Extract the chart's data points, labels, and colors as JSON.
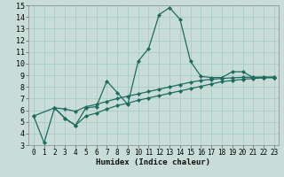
{
  "xlabel": "Humidex (Indice chaleur)",
  "bg_color": "#c8ddd8",
  "grid_color": "#aaccc6",
  "line_color": "#1e6b5e",
  "xlim_min": -0.5,
  "xlim_max": 23.4,
  "ylim_min": 3,
  "ylim_max": 15,
  "xticks": [
    0,
    1,
    2,
    3,
    4,
    5,
    6,
    7,
    8,
    9,
    10,
    11,
    12,
    13,
    14,
    15,
    16,
    17,
    18,
    19,
    20,
    21,
    22,
    23
  ],
  "yticks": [
    3,
    4,
    5,
    6,
    7,
    8,
    9,
    10,
    11,
    12,
    13,
    14,
    15
  ],
  "spiky_x": [
    0,
    1,
    2,
    3,
    4,
    5,
    6,
    7,
    8,
    9,
    10,
    11,
    12,
    13,
    14,
    15,
    16,
    17,
    18,
    19,
    20,
    21,
    22,
    23
  ],
  "spiky_y": [
    5.5,
    3.2,
    6.2,
    5.3,
    4.7,
    6.2,
    6.3,
    8.5,
    7.5,
    6.5,
    10.2,
    11.3,
    14.2,
    14.8,
    13.8,
    10.2,
    8.9,
    8.8,
    8.8,
    9.3,
    9.3,
    8.8,
    8.8,
    8.8
  ],
  "upper_x": [
    0,
    2,
    3,
    4,
    5,
    6,
    7,
    8,
    9,
    10,
    11,
    12,
    13,
    14,
    15,
    16,
    17,
    18,
    19,
    20,
    21,
    22,
    23
  ],
  "upper_y": [
    5.5,
    6.2,
    6.1,
    5.9,
    6.3,
    6.5,
    6.75,
    7.0,
    7.2,
    7.4,
    7.6,
    7.8,
    8.0,
    8.2,
    8.4,
    8.55,
    8.65,
    8.72,
    8.78,
    8.82,
    8.83,
    8.85,
    8.85
  ],
  "lower_x": [
    2,
    3,
    4,
    5,
    6,
    7,
    8,
    9,
    10,
    11,
    12,
    13,
    14,
    15,
    16,
    17,
    18,
    19,
    20,
    21,
    22,
    23
  ],
  "lower_y": [
    6.2,
    5.3,
    4.7,
    5.5,
    5.75,
    6.1,
    6.4,
    6.6,
    6.85,
    7.05,
    7.25,
    7.45,
    7.65,
    7.85,
    8.05,
    8.25,
    8.45,
    8.55,
    8.65,
    8.72,
    8.78,
    8.8
  ],
  "tick_fontsize": 5.5,
  "xlabel_fontsize": 6.5,
  "line_width": 0.9,
  "marker_size": 2.2
}
